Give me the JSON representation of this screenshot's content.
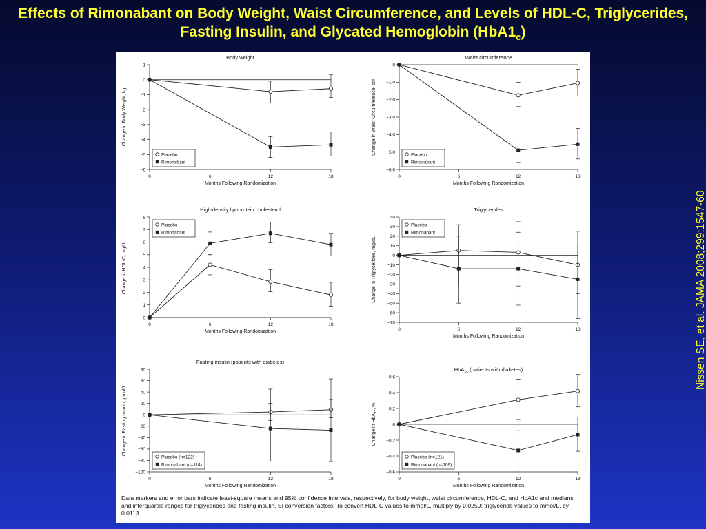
{
  "slide": {
    "title_main": "Effects of Rimonabant on Body Weight, Waist Circumference, and Levels of HDL-C, Triglycerides, Fasting Insulin, and Glycated Hemoglobin (HbA1",
    "title_sub": "c",
    "title_end": ")",
    "citation": "Nissen SE, et al. JAMA 2008;299:1547-60",
    "footnote": "Data markers and error bars indicate least-square means and 95% confidence intervals, respectively, for body weight, waist circumference, HDL-C, and HbA1c and medians and interquartile ranges for triglycerides and fasting insulin. SI conversion factors: To convert HDL-C values to mmol/L, multiply by 0.0259; triglyceride values to mmol/L, by 0.0113."
  },
  "colors": {
    "accent_text": "#ffff33",
    "line": "#222222"
  },
  "chart_data": [
    {
      "type": "line",
      "title": "Body weight",
      "xlabel": "Months Following Randomization",
      "ylabel": "Change in Body Weight, kg",
      "x": [
        0,
        6,
        12,
        18
      ],
      "xticks": [
        0,
        6,
        12,
        18
      ],
      "visible_x": [
        0,
        12,
        18
      ],
      "ylim": [
        -6,
        1
      ],
      "yticks": [
        -6,
        -5,
        -4,
        -3,
        -2,
        -1,
        0,
        1
      ],
      "ytick_labels": [
        "−6",
        "−5",
        "−4",
        "−3",
        "−2",
        "−1",
        "0",
        "1"
      ],
      "legend_position": "bottom-left",
      "series": [
        {
          "name": "Placebo",
          "marker": "open-circle",
          "values": [
            0,
            null,
            -0.8,
            -0.6
          ],
          "low": [
            null,
            null,
            -1.55,
            -1.2
          ],
          "high": [
            null,
            null,
            -0.1,
            0.35
          ]
        },
        {
          "name": "Rimonabant",
          "marker": "filled-square",
          "values": [
            0,
            null,
            -4.5,
            -4.35
          ],
          "low": [
            null,
            null,
            -5.2,
            -5.1
          ],
          "high": [
            null,
            null,
            -3.8,
            -3.5
          ]
        }
      ]
    },
    {
      "type": "line",
      "title": "Waist circumference",
      "xlabel": "Months Following Randomization",
      "ylabel": "Change in Waist Circumference, cm",
      "x": [
        0,
        6,
        12,
        18
      ],
      "xticks": [
        0,
        6,
        12,
        18
      ],
      "visible_x": [
        0,
        12,
        18
      ],
      "ylim": [
        -6,
        0
      ],
      "yticks": [
        -6,
        -5,
        -4,
        -3,
        -2,
        -1,
        0
      ],
      "ytick_labels": [
        "−6.0",
        "−5.0",
        "−4.0",
        "−3.0",
        "−2.0",
        "−1.0",
        "0"
      ],
      "legend_position": "bottom-left",
      "series": [
        {
          "name": "Placebo",
          "marker": "open-circle",
          "values": [
            0,
            null,
            -1.75,
            -1.05
          ],
          "low": [
            null,
            null,
            -2.4,
            -1.8
          ],
          "high": [
            null,
            null,
            -1.0,
            -0.25
          ]
        },
        {
          "name": "Rimonabant",
          "marker": "filled-square",
          "values": [
            0,
            null,
            -4.9,
            -4.55
          ],
          "low": [
            null,
            null,
            -5.6,
            -5.4
          ],
          "high": [
            null,
            null,
            -4.2,
            -3.65
          ]
        }
      ]
    },
    {
      "type": "line",
      "title": "High-density lipoprotein cholesterol",
      "xlabel": "Months Following Randomization",
      "ylabel": "Change in HDL-C, mg/dL",
      "x": [
        0,
        6,
        12,
        18
      ],
      "xticks": [
        0,
        6,
        12,
        18
      ],
      "visible_x": [
        0,
        6,
        12,
        18
      ],
      "ylim": [
        0,
        8
      ],
      "yticks": [
        0,
        1,
        2,
        3,
        4,
        5,
        6,
        7,
        8
      ],
      "ytick_labels": [
        "0",
        "1",
        "2",
        "3",
        "4",
        "5",
        "6",
        "7",
        "8"
      ],
      "legend_position": "top-left",
      "series": [
        {
          "name": "Placebo",
          "marker": "open-circle",
          "values": [
            0,
            4.2,
            2.85,
            1.8
          ],
          "low": [
            null,
            3.4,
            2.05,
            0.9
          ],
          "high": [
            null,
            5.0,
            3.8,
            2.8
          ]
        },
        {
          "name": "Rimonabant",
          "marker": "filled-square",
          "values": [
            0,
            5.9,
            6.7,
            5.8
          ],
          "low": [
            null,
            5.0,
            5.95,
            4.9
          ],
          "high": [
            null,
            6.8,
            7.6,
            6.7
          ]
        }
      ]
    },
    {
      "type": "line",
      "title": "Triglycerides",
      "xlabel": "Months Following Randomization",
      "ylabel": "Change in Triglycerides, mg/dL",
      "x": [
        0,
        6,
        12,
        18
      ],
      "xticks": [
        0,
        6,
        12,
        18
      ],
      "visible_x": [
        0,
        6,
        12,
        18
      ],
      "ylim": [
        -70,
        40
      ],
      "yticks": [
        -70,
        -60,
        -50,
        -40,
        -30,
        -20,
        -10,
        0,
        10,
        20,
        30,
        40
      ],
      "ytick_labels": [
        "−70",
        "−60",
        "−50",
        "−40",
        "−30",
        "−20",
        "−10",
        "0",
        "10",
        "20",
        "30",
        "40"
      ],
      "legend_position": "top-left",
      "series": [
        {
          "name": "Placebo",
          "marker": "open-circle",
          "values": [
            0,
            5,
            3,
            -10
          ],
          "low": [
            null,
            -30,
            -32,
            -40
          ],
          "high": [
            null,
            32,
            35,
            11
          ]
        },
        {
          "name": "Rimonabant",
          "marker": "filled-square",
          "values": [
            0,
            -14,
            -14,
            -25
          ],
          "low": [
            null,
            -50,
            -52,
            -66
          ],
          "high": [
            null,
            20,
            24,
            25
          ]
        }
      ]
    },
    {
      "type": "line",
      "title": "Fasting insulin (patients with diabetes)",
      "xlabel": "Months Following Randomization",
      "ylabel": "Change in Fasting Insulin, pmol/L",
      "x": [
        0,
        6,
        12,
        18
      ],
      "xticks": [
        0,
        6,
        12,
        18
      ],
      "visible_x": [
        0,
        12,
        18
      ],
      "ylim": [
        -100,
        80
      ],
      "yticks": [
        -100,
        -80,
        -60,
        -40,
        -20,
        0,
        20,
        40,
        60,
        80
      ],
      "ytick_labels": [
        "−100",
        "−80",
        "−60",
        "−40",
        "−20",
        "0",
        "20",
        "40",
        "60",
        "80"
      ],
      "legend_position": "bottom-left",
      "series": [
        {
          "name": "Placebo (n=122)",
          "marker": "open-circle",
          "values": [
            0,
            null,
            5,
            9
          ],
          "low": [
            null,
            null,
            -10,
            -5
          ],
          "high": [
            null,
            null,
            20,
            27
          ]
        },
        {
          "name": "Rimonabant (n=114)",
          "marker": "filled-square",
          "values": [
            0,
            null,
            -24,
            -27
          ],
          "low": [
            null,
            null,
            -81,
            -82
          ],
          "high": [
            null,
            null,
            45,
            63
          ]
        }
      ]
    },
    {
      "type": "line",
      "title": "HbA",
      "title_sub": "1c",
      "title_rest": " (patients with diabetes)",
      "xlabel": "Months Following Randomization",
      "ylabel": "Change in HbA",
      "ylabel_sub": "1c",
      "ylabel_rest": ", %",
      "x": [
        0,
        6,
        12,
        18
      ],
      "xticks": [
        0,
        6,
        12,
        18
      ],
      "visible_x": [
        0,
        12,
        18
      ],
      "ylim": [
        -0.6,
        0.6
      ],
      "yticks": [
        -0.6,
        -0.4,
        -0.2,
        0,
        0.2,
        0.4,
        0.6
      ],
      "ytick_labels": [
        "−0.6",
        "−0.4",
        "−0.2",
        "0",
        "0.2",
        "0.4",
        "0.6"
      ],
      "legend_position": "bottom-left",
      "series": [
        {
          "name": "Placebo (n=121)",
          "marker": "open-circle",
          "values": [
            0,
            null,
            0.31,
            0.42
          ],
          "low": [
            null,
            null,
            0.06,
            0.22
          ],
          "high": [
            null,
            null,
            0.57,
            0.63
          ]
        },
        {
          "name": "Rimonabant (n=109)",
          "marker": "filled-square",
          "values": [
            0,
            null,
            -0.33,
            -0.13
          ],
          "low": [
            null,
            null,
            -0.58,
            -0.34
          ],
          "high": [
            null,
            null,
            -0.08,
            0.09
          ]
        }
      ]
    }
  ]
}
